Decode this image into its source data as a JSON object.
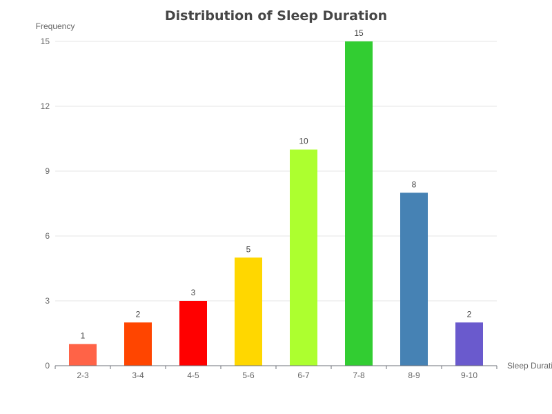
{
  "chart_data": {
    "type": "bar",
    "title": "Distribution of Sleep Duration",
    "xlabel": "Sleep Duration",
    "ylabel": "Frequency",
    "categories": [
      "2-3",
      "3-4",
      "4-5",
      "5-6",
      "6-7",
      "7-8",
      "8-9",
      "9-10"
    ],
    "values": [
      1,
      2,
      3,
      5,
      10,
      15,
      8,
      2
    ],
    "colors": [
      "#ff6347",
      "#ff4500",
      "#ff0000",
      "#ffd700",
      "#adff2f",
      "#32cd32",
      "#4682b4",
      "#6a5acd"
    ],
    "yticks": [
      0,
      3,
      6,
      9,
      12,
      15
    ],
    "ylim": [
      0,
      15
    ],
    "grid": true,
    "legend": "none",
    "data_labels": true
  }
}
